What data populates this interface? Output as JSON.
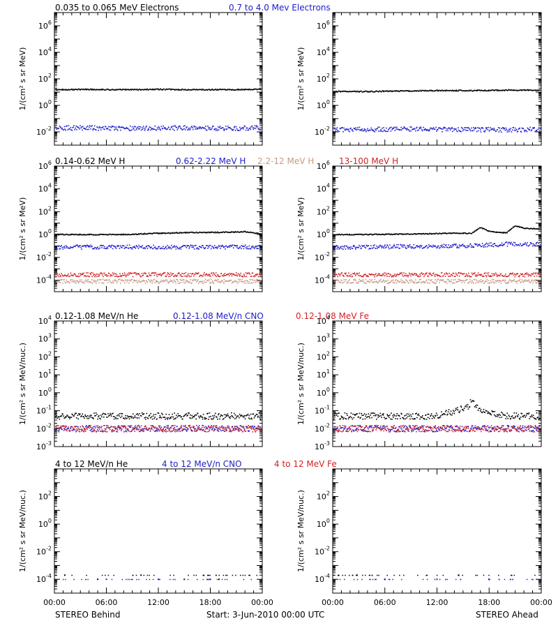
{
  "footer": {
    "left": "STEREO Behind",
    "start": "Start:  3-Jun-2010 00:00 UTC",
    "right": "STEREO Ahead"
  },
  "x_ticks": [
    "00:00",
    "06:00",
    "12:00",
    "18:00",
    "00:00"
  ],
  "colors": {
    "black": "#000000",
    "blue": "#1c1ccc",
    "tan": "#c79a85",
    "red": "#d42020"
  },
  "chart_data": [
    {
      "type": "scatter",
      "title": "",
      "legend": [
        {
          "name": "0.035 to 0.065 MeV Electrons",
          "color": "black"
        },
        {
          "name": "0.7 to 4.0 Mev Electrons",
          "color": "blue"
        }
      ],
      "ylabel": "1/(cm² s sr MeV)",
      "yscale": "log",
      "ylim": [
        0.001,
        10000000
      ],
      "yticks": [
        0.01,
        1,
        100,
        10000,
        1000000
      ],
      "ytick_labels": [
        {
          "base": "10",
          "exp": "-2"
        },
        {
          "base": "10",
          "exp": "0"
        },
        {
          "base": "10",
          "exp": "2"
        },
        {
          "base": "10",
          "exp": "4"
        },
        {
          "base": "10",
          "exp": "6"
        }
      ],
      "xlim_hours": [
        0,
        24
      ],
      "panels": [
        {
          "side": "STEREO Behind",
          "series": [
            {
              "name": "0.035 to 0.065 MeV Electrons",
              "color": "black",
              "x_hours": [
                0,
                4,
                8,
                12,
                16,
                20,
                24
              ],
              "y": [
                15,
                16,
                15,
                16,
                15,
                15,
                16
              ]
            },
            {
              "name": "0.7 to 4.0 Mev Electrons",
              "color": "blue",
              "x_hours": [
                0,
                4,
                8,
                12,
                16,
                20,
                24
              ],
              "y": [
                0.02,
                0.02,
                0.018,
                0.02,
                0.02,
                0.018,
                0.02
              ]
            }
          ]
        },
        {
          "side": "STEREO Ahead",
          "series": [
            {
              "name": "0.035 to 0.065 MeV Electrons",
              "color": "black",
              "x_hours": [
                0,
                4,
                8,
                12,
                16,
                20,
                24
              ],
              "y": [
                11,
                11,
                12,
                13,
                13,
                14,
                14
              ]
            },
            {
              "name": "0.7 to 4.0 Mev Electrons",
              "color": "blue",
              "x_hours": [
                0,
                4,
                8,
                12,
                16,
                20,
                24
              ],
              "y": [
                0.015,
                0.015,
                0.016,
                0.015,
                0.015,
                0.014,
                0.015
              ]
            }
          ]
        }
      ]
    },
    {
      "type": "scatter",
      "title": "",
      "legend": [
        {
          "name": "0.14-0.62 MeV H",
          "color": "black"
        },
        {
          "name": "0.62-2.22 MeV H",
          "color": "blue"
        },
        {
          "name": "2.2-12 MeV H",
          "color": "tan"
        },
        {
          "name": "13-100 MeV H",
          "color": "red"
        }
      ],
      "ylabel": "1/(cm² s sr MeV)",
      "yscale": "log",
      "ylim": [
        1e-05,
        1000000
      ],
      "yticks": [
        0.0001,
        0.01,
        1,
        100,
        10000,
        1000000
      ],
      "ytick_labels": [
        {
          "base": "10",
          "exp": "-4"
        },
        {
          "base": "10",
          "exp": "-2"
        },
        {
          "base": "10",
          "exp": "0"
        },
        {
          "base": "10",
          "exp": "2"
        },
        {
          "base": "10",
          "exp": "4"
        },
        {
          "base": "10",
          "exp": "6"
        }
      ],
      "xlim_hours": [
        0,
        24
      ],
      "panels": [
        {
          "side": "STEREO Behind",
          "series": [
            {
              "name": "0.14-0.62 MeV H",
              "color": "black",
              "x_hours": [
                0,
                4,
                8,
                12,
                16,
                20,
                22,
                24
              ],
              "y": [
                1.0,
                1.0,
                1.0,
                1.3,
                1.5,
                1.6,
                1.8,
                1.1
              ]
            },
            {
              "name": "0.62-2.22 MeV H",
              "color": "blue",
              "x_hours": [
                0,
                4,
                8,
                12,
                16,
                20,
                24
              ],
              "y": [
                0.08,
                0.08,
                0.08,
                0.08,
                0.08,
                0.08,
                0.08
              ]
            },
            {
              "name": "2.2-12 MeV H",
              "color": "tan",
              "x_hours": [
                0,
                6,
                12,
                18,
                24
              ],
              "y": [
                8e-05,
                8e-05,
                8e-05,
                8e-05,
                8e-05
              ]
            },
            {
              "name": "13-100 MeV H",
              "color": "red",
              "x_hours": [
                0,
                6,
                12,
                18,
                24
              ],
              "y": [
                0.0003,
                0.0003,
                0.0003,
                0.0003,
                0.0003
              ]
            }
          ]
        },
        {
          "side": "STEREO Ahead",
          "series": [
            {
              "name": "0.14-0.62 MeV H",
              "color": "black",
              "x_hours": [
                0,
                4,
                8,
                12,
                14,
                16,
                17,
                18,
                19,
                20,
                21,
                22,
                24
              ],
              "y": [
                1.0,
                1.0,
                1.1,
                1.2,
                1.3,
                1.3,
                4,
                2.0,
                1.6,
                1.4,
                6,
                3.5,
                3.0
              ]
            },
            {
              "name": "0.62-2.22 MeV H",
              "color": "blue",
              "x_hours": [
                0,
                4,
                8,
                12,
                16,
                20,
                24
              ],
              "y": [
                0.07,
                0.08,
                0.09,
                0.09,
                0.11,
                0.14,
                0.15
              ]
            },
            {
              "name": "2.2-12 MeV H",
              "color": "tan",
              "x_hours": [
                0,
                6,
                12,
                18,
                24
              ],
              "y": [
                8e-05,
                8e-05,
                8e-05,
                8e-05,
                8e-05
              ]
            },
            {
              "name": "13-100 MeV H",
              "color": "red",
              "x_hours": [
                0,
                6,
                12,
                18,
                24
              ],
              "y": [
                0.0003,
                0.0003,
                0.0003,
                0.0003,
                0.0003
              ]
            }
          ]
        }
      ]
    },
    {
      "type": "scatter",
      "title": "",
      "legend": [
        {
          "name": "0.12-1.08 MeV/n He",
          "color": "black"
        },
        {
          "name": "0.12-1.08 MeV/n CNO",
          "color": "blue"
        },
        {
          "name": "0.12-1.08 MeV Fe",
          "color": "red"
        }
      ],
      "ylabel": "1/(cm² s sr MeV/nuc.)",
      "yscale": "log",
      "ylim": [
        0.001,
        10000
      ],
      "yticks": [
        0.001,
        0.01,
        0.1,
        1,
        10,
        100,
        1000,
        10000
      ],
      "ytick_labels": [
        {
          "base": "10",
          "exp": "-3"
        },
        {
          "base": "10",
          "exp": "-2"
        },
        {
          "base": "10",
          "exp": "-1"
        },
        {
          "base": "10",
          "exp": "0"
        },
        {
          "base": "10",
          "exp": "1"
        },
        {
          "base": "10",
          "exp": "2"
        },
        {
          "base": "10",
          "exp": "3"
        },
        {
          "base": "10",
          "exp": "4"
        }
      ],
      "xlim_hours": [
        0,
        24
      ],
      "panels": [
        {
          "side": "STEREO Behind",
          "series": [
            {
              "name": "0.12-1.08 MeV/n He",
              "color": "black",
              "x_hours": [
                0,
                4,
                8,
                12,
                16,
                20,
                24
              ],
              "y": [
                0.05,
                0.05,
                0.05,
                0.05,
                0.05,
                0.05,
                0.05
              ]
            },
            {
              "name": "0.12-1.08 MeV/n CNO",
              "color": "blue",
              "x_hours": [
                0,
                6,
                12,
                18,
                24
              ],
              "y": [
                0.01,
                0.01,
                0.01,
                0.01,
                0.01
              ]
            },
            {
              "name": "0.12-1.08 MeV Fe",
              "color": "red",
              "x_hours": [
                0,
                6,
                12,
                18,
                24
              ],
              "y": [
                0.01,
                0.01,
                0.01,
                0.01,
                0.01
              ]
            }
          ]
        },
        {
          "side": "STEREO Ahead",
          "series": [
            {
              "name": "0.12-1.08 MeV/n He",
              "color": "black",
              "x_hours": [
                0,
                4,
                8,
                12,
                15.5,
                16,
                16.5,
                17,
                20,
                24
              ],
              "y": [
                0.05,
                0.05,
                0.05,
                0.05,
                0.15,
                0.35,
                0.2,
                0.1,
                0.05,
                0.05
              ]
            },
            {
              "name": "0.12-1.08 MeV/n CNO",
              "color": "blue",
              "x_hours": [
                0,
                6,
                12,
                18,
                24
              ],
              "y": [
                0.01,
                0.01,
                0.01,
                0.01,
                0.01
              ]
            },
            {
              "name": "0.12-1.08 MeV Fe",
              "color": "red",
              "x_hours": [
                0,
                6,
                12,
                18,
                24
              ],
              "y": [
                0.01,
                0.01,
                0.01,
                0.01,
                0.01
              ]
            }
          ]
        }
      ]
    },
    {
      "type": "scatter",
      "title": "",
      "legend": [
        {
          "name": "4 to 12 MeV/n He",
          "color": "black"
        },
        {
          "name": "4 to 12 MeV/n CNO",
          "color": "blue"
        },
        {
          "name": "4 to 12 MeV Fe",
          "color": "red"
        }
      ],
      "ylabel": "1/(cm² s sr MeV/nuc.)",
      "yscale": "log",
      "ylim": [
        1e-05,
        10000
      ],
      "yticks": [
        0.0001,
        0.01,
        1,
        100
      ],
      "ytick_labels": [
        {
          "base": "10",
          "exp": "-4"
        },
        {
          "base": "10",
          "exp": "-2"
        },
        {
          "base": "10",
          "exp": "0"
        },
        {
          "base": "10",
          "exp": "2"
        }
      ],
      "xlim_hours": [
        0,
        24
      ],
      "panels": [
        {
          "side": "STEREO Behind",
          "series": [
            {
              "name": "4 to 12 MeV/n He",
              "color": "black",
              "x_hours": [
                1.2,
                5,
                10,
                15,
                19
              ],
              "y": [
                0.0002,
                0.0001,
                0.0002,
                0.0001,
                0.0001
              ]
            },
            {
              "name": "4 to 12 MeV/n CNO",
              "color": "blue",
              "x_hours": [
                0,
                6,
                12,
                18,
                24
              ],
              "y": [
                0.0001,
                0.0001,
                0.0001,
                0.0001,
                0.0001
              ]
            }
          ]
        },
        {
          "side": "STEREO Ahead",
          "series": [
            {
              "name": "4 to 12 MeV/n He",
              "color": "black",
              "x_hours": [
                2.8,
                6,
                14.5,
                18
              ],
              "y": [
                0.0002,
                0.0001,
                0.0002,
                0.0001
              ]
            },
            {
              "name": "4 to 12 MeV/n CNO",
              "color": "blue",
              "x_hours": [
                0,
                6,
                12,
                18,
                24
              ],
              "y": [
                0.0001,
                0.0001,
                0.0001,
                0.0001,
                0.0001
              ]
            }
          ]
        }
      ]
    }
  ]
}
